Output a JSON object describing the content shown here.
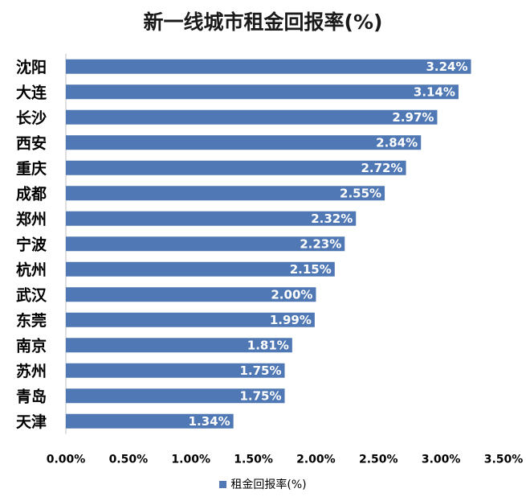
{
  "chart_data": {
    "type": "bar",
    "orientation": "horizontal",
    "title": "新一线城市租金回报率(%)",
    "categories": [
      "沈阳",
      "大连",
      "长沙",
      "西安",
      "重庆",
      "成都",
      "郑州",
      "宁波",
      "杭州",
      "武汉",
      "东莞",
      "南京",
      "苏州",
      "青岛",
      "天津"
    ],
    "series": [
      {
        "name": "租金回报率(%)",
        "values": [
          3.24,
          3.14,
          2.97,
          2.84,
          2.72,
          2.55,
          2.32,
          2.23,
          2.15,
          2.0,
          1.99,
          1.81,
          1.75,
          1.75,
          1.34
        ],
        "labels": [
          "3.24%",
          "3.14%",
          "2.97%",
          "2.84%",
          "2.72%",
          "2.55%",
          "2.32%",
          "2.23%",
          "2.15%",
          "2.00%",
          "1.99%",
          "1.81%",
          "1.75%",
          "1.75%",
          "1.34%"
        ],
        "color": "#4f78b4"
      }
    ],
    "xlim": [
      0,
      3.5
    ],
    "x_ticks": [
      "0.00%",
      "0.50%",
      "1.00%",
      "1.50%",
      "2.00%",
      "2.50%",
      "3.00%",
      "3.50%"
    ],
    "grid": false,
    "legend_position": "bottom"
  }
}
